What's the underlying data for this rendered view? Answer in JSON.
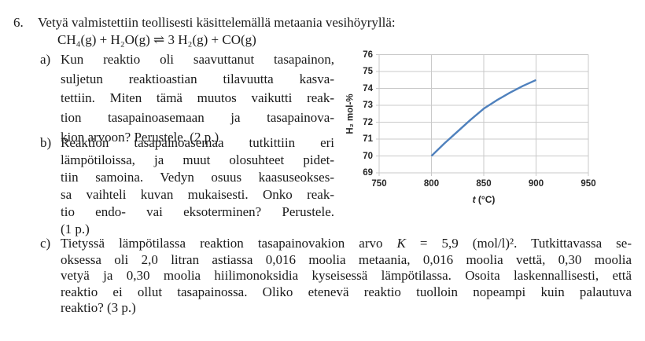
{
  "problem": {
    "number": "6.",
    "intro": "Vetyä valmistettiin teollisesti käsittelemällä metaania vesihöyryllä:",
    "equation": "CH₄(g) + H₂O(g) ⇌ 3 H₂(g) + CO(g)",
    "parts": [
      {
        "label": "a)",
        "lines": [
          "Kun reaktio oli saavuttanut tasapainon,",
          "suljetun reaktioastian tilavuutta kasva-",
          "tettiin. Miten tämä muutos vaikutti reak-",
          "tion tasapainoasemaan ja tasapainova-",
          "kion arvoon? Perustele. (2 p.)"
        ]
      },
      {
        "label": "b)",
        "lines": [
          "Reaktion tasapainoasemaa tutkittiin eri",
          "lämpötiloissa, ja muut olosuhteet pidet-",
          "tiin samoina. Vedyn osuus kaasuseokses-",
          "sa vaihteli kuvan mukaisesti. Onko reak-",
          "tio endo- vai eksoterminen? Perustele.",
          "(1 p.)"
        ]
      },
      {
        "label": "c)",
        "line1": {
          "pre": "Tietyssä lämpötilassa reaktion tasapainovakion arvo ",
          "k": "K",
          "post": " = 5,9 (mol/l)². Tutkittavassa se-"
        },
        "lines": [
          "oksessa oli 2,0 litran astiassa 0,016 moolia metaania, 0,016 moolia vettä, 0,30 moolia",
          "vetyä ja 0,30 moolia hiilimonoksidia kyseisessä lämpötilassa. Osoita laskennallisesti, että",
          "reaktio ei ollut tasapainossa. Oliko etenevä reaktio tuolloin nopeampi kuin palautuva",
          "reaktio? (3 p.)"
        ]
      }
    ]
  },
  "chart_data": {
    "type": "line",
    "title": "",
    "ylabel": "H₂ mol-%",
    "xlabel_italic": "t",
    "xlabel_rest": " (°C)",
    "xlim": [
      750,
      950
    ],
    "ylim": [
      69,
      76
    ],
    "x_ticks": [
      750,
      800,
      850,
      900,
      950
    ],
    "y_ticks": [
      69,
      70,
      71,
      72,
      73,
      74,
      75,
      76
    ],
    "grid": true,
    "legend": "none",
    "line_color": "#4F81BD",
    "grid_color": "#C9C9C9",
    "series": [
      {
        "name": "H2 mol-%",
        "x": [
          800,
          812.5,
          825,
          837.5,
          850,
          862.5,
          875,
          887.5,
          900
        ],
        "y": [
          70.0,
          70.75,
          71.45,
          72.15,
          72.8,
          73.3,
          73.75,
          74.15,
          74.5
        ]
      }
    ]
  }
}
